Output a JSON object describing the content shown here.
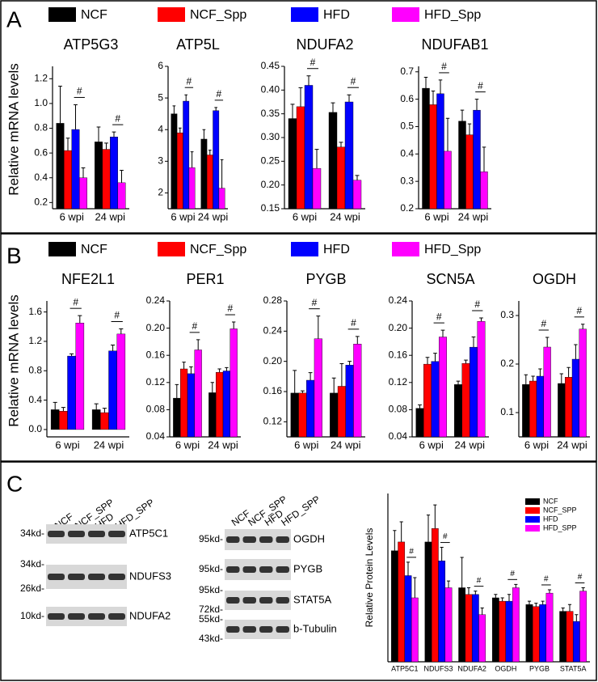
{
  "panels": [
    "A",
    "B",
    "C"
  ],
  "chart_data": [
    {
      "type": "bar",
      "title": "ATP5G3",
      "y_label": "Relative mRNA levels",
      "legend": "above",
      "categories": [
        "6 wpi",
        "24 wpi"
      ],
      "ylim": [
        0.15,
        1.3
      ],
      "yticks": [
        0.2,
        0.4,
        0.6,
        0.8,
        {
          "value": 1,
          "label": "1.0"
        },
        1.2
      ],
      "series": [
        {
          "name": "NCF",
          "color": "#000000",
          "values": [
            0.84,
            0.69
          ],
          "errors": [
            0.3,
            0.12
          ]
        },
        {
          "name": "NCF_Spp",
          "color": "#ff0000",
          "values": [
            0.62,
            0.63
          ],
          "errors": [
            0.1,
            0.05
          ]
        },
        {
          "name": "HFD",
          "color": "#0000ff",
          "values": [
            0.79,
            0.73
          ],
          "errors": [
            0.2,
            0.04
          ]
        },
        {
          "name": "HFD_Spp",
          "color": "#ff00ff",
          "values": [
            0.4,
            0.36
          ],
          "errors": [
            0.08,
            0.1
          ]
        }
      ],
      "annotations": [
        {
          "text": "#",
          "category": "6 wpi"
        },
        {
          "text": "#",
          "category": "24 wpi"
        }
      ]
    },
    {
      "type": "bar",
      "title": "ATP5L",
      "categories": [
        "6 wpi",
        "24 wpi"
      ],
      "ylim": [
        1.5,
        6
      ],
      "yticks": [
        2,
        3,
        4,
        5,
        6
      ],
      "series": [
        {
          "name": "NCF",
          "color": "#000000",
          "values": [
            4.5,
            3.7
          ],
          "errors": [
            0.25,
            0.3
          ]
        },
        {
          "name": "NCF_Spp",
          "color": "#ff0000",
          "values": [
            3.9,
            3.2
          ],
          "errors": [
            0.15,
            0.15
          ]
        },
        {
          "name": "HFD",
          "color": "#0000ff",
          "values": [
            4.9,
            4.6
          ],
          "errors": [
            0.2,
            0.1
          ]
        },
        {
          "name": "HFD_Spp",
          "color": "#ff00ff",
          "values": [
            2.8,
            2.15
          ],
          "errors": [
            0.5,
            0.9
          ]
        }
      ],
      "annotations": [
        {
          "text": "#",
          "category": "6 wpi"
        },
        {
          "text": "#",
          "category": "24 wpi"
        }
      ]
    },
    {
      "type": "bar",
      "title": "NDUFA2",
      "categories": [
        "6 wpi",
        "24 wpi"
      ],
      "ylim": [
        0.15,
        0.45
      ],
      "yticks": [
        0.15,
        {
          "value": 0.2,
          "label": "0.20"
        },
        0.25,
        {
          "value": 0.3,
          "label": "0.30"
        },
        0.35,
        {
          "value": 0.4,
          "label": "0.40"
        },
        0.45
      ],
      "series": [
        {
          "name": "NCF",
          "color": "#000000",
          "values": [
            0.34,
            0.353
          ],
          "errors": [
            0.03,
            0.02
          ]
        },
        {
          "name": "NCF_Spp",
          "color": "#ff0000",
          "values": [
            0.365,
            0.28
          ],
          "errors": [
            0.04,
            0.01
          ]
        },
        {
          "name": "HFD",
          "color": "#0000ff",
          "values": [
            0.41,
            0.375
          ],
          "errors": [
            0.02,
            0.015
          ]
        },
        {
          "name": "HFD_Spp",
          "color": "#ff00ff",
          "values": [
            0.235,
            0.21
          ],
          "errors": [
            0.04,
            0.01
          ]
        }
      ],
      "annotations": [
        {
          "text": "#",
          "category": "6 wpi"
        },
        {
          "text": "#",
          "category": "24 wpi"
        }
      ]
    },
    {
      "type": "bar",
      "title": "NDUFAB1",
      "categories": [
        "6 wpi",
        "24 wpi"
      ],
      "ylim": [
        0.2,
        0.72
      ],
      "yticks": [
        0.2,
        0.3,
        0.4,
        0.5,
        0.6,
        0.7
      ],
      "series": [
        {
          "name": "NCF",
          "color": "#000000",
          "values": [
            0.64,
            0.52
          ],
          "errors": [
            0.04,
            0.04
          ]
        },
        {
          "name": "NCF_Spp",
          "color": "#ff0000",
          "values": [
            0.58,
            0.47
          ],
          "errors": [
            0.05,
            0.04
          ]
        },
        {
          "name": "HFD",
          "color": "#0000ff",
          "values": [
            0.62,
            0.56
          ],
          "errors": [
            0.05,
            0.04
          ]
        },
        {
          "name": "HFD_Spp",
          "color": "#ff00ff",
          "values": [
            0.41,
            0.335
          ],
          "errors": [
            0.12,
            0.09
          ]
        }
      ],
      "annotations": [
        {
          "text": "#",
          "category": "6 wpi"
        },
        {
          "text": "#",
          "category": "24 wpi"
        }
      ]
    },
    {
      "type": "bar",
      "title": "NFE2L1",
      "y_label": "Relative mRNA levels",
      "legend": "above",
      "categories": [
        "6 wpi",
        "24 wpi"
      ],
      "ylim": [
        -0.1,
        1.75
      ],
      "yticks": [
        {
          "value": 0,
          "label": "0.0"
        },
        0.4,
        0.8,
        1.2,
        1.6
      ],
      "series": [
        {
          "name": "NCF",
          "color": "#000000",
          "values": [
            0.27,
            0.27
          ],
          "errors": [
            0.1,
            0.08
          ]
        },
        {
          "name": "NCF_Spp",
          "color": "#ff0000",
          "values": [
            0.25,
            0.23
          ],
          "errors": [
            0.05,
            0.06
          ]
        },
        {
          "name": "HFD",
          "color": "#0000ff",
          "values": [
            1.0,
            1.07
          ],
          "errors": [
            0.03,
            0.08
          ]
        },
        {
          "name": "HFD_Spp",
          "color": "#ff00ff",
          "values": [
            1.45,
            1.3
          ],
          "errors": [
            0.1,
            0.07
          ]
        }
      ],
      "annotations": [
        {
          "text": "#",
          "category": "6 wpi"
        },
        {
          "text": "#",
          "category": "24 wpi"
        }
      ]
    },
    {
      "type": "bar",
      "title": "PER1",
      "categories": [
        "6 wpi",
        "24 wpi"
      ],
      "ylim": [
        0.04,
        0.24
      ],
      "yticks": [
        0.04,
        0.08,
        0.12,
        0.16,
        {
          "value": 0.2,
          "label": "0.20"
        },
        0.24
      ],
      "series": [
        {
          "name": "NCF",
          "color": "#000000",
          "values": [
            0.097,
            0.105
          ],
          "errors": [
            0.02,
            0.015
          ]
        },
        {
          "name": "NCF_Spp",
          "color": "#ff0000",
          "values": [
            0.14,
            0.135
          ],
          "errors": [
            0.01,
            0.005
          ]
        },
        {
          "name": "HFD",
          "color": "#0000ff",
          "values": [
            0.133,
            0.137
          ],
          "errors": [
            0.01,
            0.005
          ]
        },
        {
          "name": "HFD_Spp",
          "color": "#ff00ff",
          "values": [
            0.168,
            0.199
          ],
          "errors": [
            0.015,
            0.01
          ]
        }
      ],
      "annotations": [
        {
          "text": "#",
          "category": "6 wpi"
        },
        {
          "text": "#",
          "category": "24 wpi"
        }
      ]
    },
    {
      "type": "bar",
      "title": "PYGB",
      "categories": [
        "6 wpi",
        "24 wpi"
      ],
      "ylim": [
        0.1,
        0.28
      ],
      "yticks": [
        0.12,
        0.16,
        {
          "value": 0.2,
          "label": "0.20"
        },
        0.24,
        0.28
      ],
      "series": [
        {
          "name": "NCF",
          "color": "#000000",
          "values": [
            0.158,
            0.158
          ],
          "errors": [
            0.03,
            0.02
          ]
        },
        {
          "name": "NCF_Spp",
          "color": "#ff0000",
          "values": [
            0.158,
            0.167
          ],
          "errors": [
            0.003,
            0.03
          ]
        },
        {
          "name": "HFD",
          "color": "#0000ff",
          "values": [
            0.175,
            0.195
          ],
          "errors": [
            0.01,
            0.005
          ]
        },
        {
          "name": "HFD_Spp",
          "color": "#ff00ff",
          "values": [
            0.23,
            0.223
          ],
          "errors": [
            0.03,
            0.01
          ]
        }
      ],
      "annotations": [
        {
          "text": "#",
          "category": "6 wpi"
        },
        {
          "text": "#",
          "category": "24 wpi"
        }
      ]
    },
    {
      "type": "bar",
      "title": "SCN5A",
      "categories": [
        "6 wpi",
        "24 wpi"
      ],
      "ylim": [
        0.04,
        0.24
      ],
      "yticks": [
        0.04,
        0.08,
        0.12,
        0.16,
        {
          "value": 0.2,
          "label": "0.20"
        },
        0.24
      ],
      "series": [
        {
          "name": "NCF",
          "color": "#000000",
          "values": [
            0.082,
            0.117
          ],
          "errors": [
            0.005,
            0.005
          ]
        },
        {
          "name": "NCF_Spp",
          "color": "#ff0000",
          "values": [
            0.147,
            0.148
          ],
          "errors": [
            0.01,
            0.005
          ]
        },
        {
          "name": "HFD",
          "color": "#0000ff",
          "values": [
            0.151,
            0.172
          ],
          "errors": [
            0.012,
            0.015
          ]
        },
        {
          "name": "HFD_Spp",
          "color": "#ff00ff",
          "values": [
            0.187,
            0.21
          ],
          "errors": [
            0.01,
            0.005
          ]
        }
      ],
      "annotations": [
        {
          "text": "#",
          "category": "6 wpi"
        },
        {
          "text": "#",
          "category": "24 wpi"
        }
      ]
    },
    {
      "type": "bar",
      "title": "OGDH",
      "categories": [
        "6 wpi",
        "24 wpi"
      ],
      "ylim": [
        0.05,
        0.33
      ],
      "yticks": [
        0.1,
        0.2,
        0.3
      ],
      "series": [
        {
          "name": "NCF",
          "color": "#000000",
          "values": [
            0.158,
            0.16
          ],
          "errors": [
            0.02,
            0.02
          ]
        },
        {
          "name": "NCF_Spp",
          "color": "#ff0000",
          "values": [
            0.165,
            0.173
          ],
          "errors": [
            0.01,
            0.02
          ]
        },
        {
          "name": "HFD",
          "color": "#0000ff",
          "values": [
            0.175,
            0.21
          ],
          "errors": [
            0.015,
            0.03
          ]
        },
        {
          "name": "HFD_Spp",
          "color": "#ff00ff",
          "values": [
            0.235,
            0.272
          ],
          "errors": [
            0.02,
            0.01
          ]
        }
      ],
      "annotations": [
        {
          "text": "#",
          "category": "6 wpi"
        },
        {
          "text": "#",
          "category": "24 wpi"
        }
      ]
    },
    {
      "type": "bar",
      "y_label": "Relative Protein Levels",
      "legend": "upper right",
      "categories": [
        "ATP5C1",
        "NDUFS3",
        "NDUFA2",
        "OGDH",
        "PYGB",
        "STAT5A"
      ],
      "ylim": [
        0,
        2.5
      ],
      "series": [
        {
          "name": "NCF",
          "color": "#000000",
          "values": [
            1.65,
            1.78,
            1.1,
            0.95,
            0.85,
            0.75
          ],
          "errors": [
            0.3,
            0.4,
            0.45,
            0.05,
            0.05,
            0.05
          ]
        },
        {
          "name": "NCF_SPP",
          "color": "#ff0000",
          "values": [
            1.78,
            1.98,
            1.0,
            0.9,
            0.82,
            0.75
          ],
          "errors": [
            0.3,
            0.35,
            0.1,
            0.05,
            0.05,
            0.1
          ]
        },
        {
          "name": "HFD",
          "color": "#0000ff",
          "values": [
            1.28,
            1.5,
            1.0,
            0.9,
            0.85,
            0.6
          ],
          "errors": [
            0.2,
            0.2,
            0.05,
            0.1,
            0.05,
            0.1
          ]
        },
        {
          "name": "HFD_SPP",
          "color": "#ff00ff",
          "values": [
            0.95,
            1.1,
            0.7,
            1.1,
            1.02,
            1.05
          ],
          "errors": [
            0.3,
            0.1,
            0.1,
            0.05,
            0.05,
            0.05
          ]
        }
      ],
      "annotations": [
        {
          "text": "#",
          "category": "ATP5C1"
        },
        {
          "text": "#",
          "category": "NDUFS3"
        },
        {
          "text": "#",
          "category": "NDUFA2"
        },
        {
          "text": "#",
          "category": "OGDH"
        },
        {
          "text": "#",
          "category": "PYGB"
        },
        {
          "text": "#",
          "category": "STAT5A"
        }
      ]
    }
  ],
  "blots": [
    {
      "lanes": [
        "NCF",
        "NCF_SPP",
        "HFD",
        "HFD_SPP"
      ],
      "rows": [
        {
          "name": "ATP5C1",
          "markers": [
            "34kd-"
          ]
        },
        {
          "name": "NDUFS3",
          "markers": [
            "34kd-",
            "26kd-"
          ]
        },
        {
          "name": "NDUFA2",
          "markers": [
            "10kd-"
          ]
        }
      ]
    },
    {
      "lanes": [
        "NCF",
        "NCF_SPP",
        "HFD",
        "HFD_SPP"
      ],
      "rows": [
        {
          "name": "OGDH",
          "markers": [
            "95kd-"
          ]
        },
        {
          "name": "PYGB",
          "markers": [
            "95kd-"
          ]
        },
        {
          "name": "STAT5A",
          "markers": [
            "95kd-",
            "72kd-"
          ]
        },
        {
          "name": "b-Tubulin",
          "markers": [
            "55kd-",
            "43kd-"
          ]
        }
      ]
    }
  ]
}
